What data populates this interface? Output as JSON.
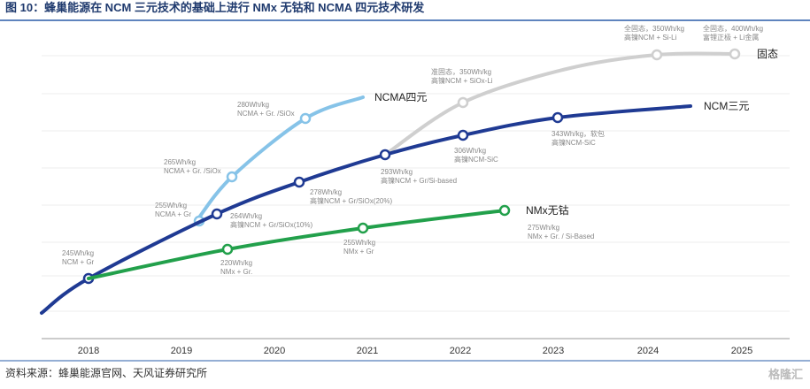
{
  "title": "图 10：蜂巢能源在 NCM 三元技术的基础上进行 NMx 无钴和 NCMA 四元技术研发",
  "years": [
    "2018",
    "2019",
    "2020",
    "2021",
    "2022",
    "2023",
    "2024",
    "2025"
  ],
  "curves": [
    {
      "name": "NCM三元",
      "points": [
        {
          "lines": [
            "245Wh/kg",
            "NCM + Gr"
          ]
        },
        {
          "lines": [
            "264Wh/kg",
            "高镍NCM + Gr/SiOx(10%)"
          ]
        },
        {
          "lines": [
            "278Wh/kg",
            "高镍NCM + Gr/SiOx(20%)"
          ]
        },
        {
          "lines": [
            "293Wh/kg",
            "高镍NCM + Gr/Si-based"
          ]
        },
        {
          "lines": [
            "306Wh/kg",
            "高镍NCM-SiC"
          ]
        },
        {
          "lines": [
            "343Wh/kg，软包",
            "高镍NCM-SiC"
          ]
        }
      ]
    },
    {
      "name": "NMx无钴",
      "points": [
        {
          "lines": [
            "220Wh/kg",
            "NMx + Gr."
          ]
        },
        {
          "lines": [
            "255Wh/kg",
            "NMx + Gr"
          ]
        },
        {
          "lines": [
            "275Wh/kg",
            "NMx + Gr. / Si-Based"
          ]
        }
      ]
    },
    {
      "name": "NCMA四元",
      "points": [
        {
          "lines": [
            "255Wh/kg",
            "NCMA + Gr"
          ]
        },
        {
          "lines": [
            "265Wh/kg",
            "NCMA + Gr. /SiOx"
          ]
        },
        {
          "lines": [
            "280Wh/kg",
            "NCMA + Gr. /SiOx"
          ]
        }
      ]
    },
    {
      "name": "固态",
      "points": [
        {
          "lines": [
            "准固态，350Wh/kg",
            "高镍NCM + SiOx-Li"
          ]
        },
        {
          "lines": [
            "全固态，350Wh/kg",
            "高镍NCM + Si-Li"
          ]
        },
        {
          "lines": [
            "全固态，400Wh/kg",
            "富锂正极 + Li金属"
          ]
        }
      ]
    }
  ],
  "source": "资料来源：蜂巢能源官网、天风证券研究所",
  "watermark": "格隆汇"
}
